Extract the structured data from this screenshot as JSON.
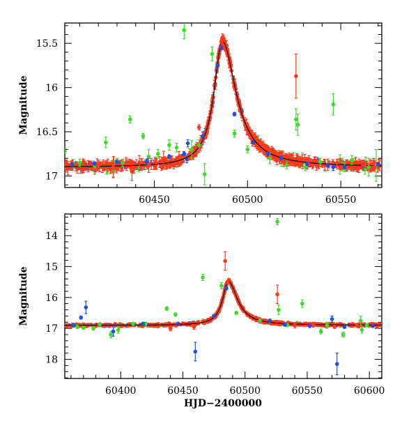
{
  "colors": {
    "blue": "#1f4fe0",
    "red": "#ff3a1c",
    "green": "#3cdc2a",
    "model": "#000000",
    "frame": "#000000"
  },
  "chart_data": [
    {
      "type": "scatter",
      "xlabel": "",
      "ylabel": "Magnitude",
      "xlim": [
        60402,
        60572
      ],
      "ylim": [
        15.27,
        17.13
      ],
      "y_inverted": true,
      "xticks": [
        60450,
        60500,
        60550
      ],
      "yticks": [
        15.5,
        16,
        16.5,
        17
      ],
      "ytick_labels": [
        "15.5",
        "16",
        "16.5",
        "17"
      ],
      "model_curve": true,
      "series": [
        {
          "color_key": "green",
          "points": [
            [
              60402,
              16.72,
              0.03
            ],
            [
              60410,
              16.85,
              0.04
            ],
            [
              60418,
              16.88,
              0.03
            ],
            [
              60424,
              16.62,
              0.06
            ],
            [
              60428,
              16.95,
              0.06
            ],
            [
              60433,
              16.85,
              0.04
            ],
            [
              60437,
              16.36,
              0.04
            ],
            [
              60444,
              16.55,
              0.03
            ],
            [
              60447,
              16.78,
              0.08
            ],
            [
              60452,
              16.75,
              0.05
            ],
            [
              60458,
              16.65,
              0.06
            ],
            [
              60462,
              16.68,
              0.05
            ],
            [
              60466,
              15.35,
              0.1
            ],
            [
              60470,
              16.7,
              0.1
            ],
            [
              60474,
              16.65,
              0.06
            ],
            [
              60477,
              16.98,
              0.12
            ],
            [
              60481,
              15.62,
              0.08
            ],
            [
              60493,
              16.52,
              0.04
            ],
            [
              60500,
              16.7,
              0.04
            ],
            [
              60512,
              16.8,
              0.06
            ],
            [
              60521,
              16.88,
              0.04
            ],
            [
              60526,
              16.36,
              0.12
            ],
            [
              60527,
              16.42,
              0.12
            ],
            [
              60531,
              16.9,
              0.04
            ],
            [
              60539,
              16.84,
              0.04
            ],
            [
              60546,
              16.19,
              0.12
            ],
            [
              60552,
              16.9,
              0.05
            ],
            [
              60556,
              16.82,
              0.05
            ],
            [
              60563,
              16.93,
              0.05
            ],
            [
              60565,
              16.9,
              0.1
            ],
            [
              60569,
              16.88,
              0.18
            ]
          ]
        },
        {
          "color_key": "blue",
          "points": [
            [
              60406,
              16.87,
              0.02
            ],
            [
              60418,
              16.86,
              0.02
            ],
            [
              60430,
              16.84,
              0.02
            ],
            [
              60446,
              16.84,
              0.03
            ],
            [
              60458,
              16.78,
              0.02
            ],
            [
              60466,
              16.75,
              0.02
            ],
            [
              60468,
              16.63,
              0.04
            ],
            [
              60476,
              16.55,
              0.05
            ],
            [
              60484,
              15.75,
              0.02
            ],
            [
              60486,
              15.55,
              0.02
            ],
            [
              60493,
              16.3,
              0.02
            ],
            [
              60503,
              16.62,
              0.02
            ],
            [
              60511,
              16.75,
              0.02
            ],
            [
              60518,
              16.8,
              0.02
            ],
            [
              60532,
              16.86,
              0.02
            ],
            [
              60543,
              16.88,
              0.02
            ],
            [
              60552,
              16.9,
              0.02
            ],
            [
              60562,
              16.89,
              0.02
            ],
            [
              60570,
              16.87,
              0.02
            ]
          ]
        },
        {
          "color_key": "red",
          "points": [
            [
              60420,
              16.88,
              0.06
            ],
            [
              60428,
              16.9,
              0.12
            ],
            [
              60438,
              16.95,
              0.1
            ],
            [
              60442,
              16.85,
              0.08
            ],
            [
              60447,
              16.88,
              0.08
            ],
            [
              60455,
              16.82,
              0.1
            ],
            [
              60474,
              16.45,
              0.03
            ],
            [
              60486,
              15.48,
              0.04
            ],
            [
              60526,
              15.87,
              0.25
            ],
            [
              60533,
              16.82,
              0.05
            ],
            [
              60548,
              16.85,
              0.04
            ],
            [
              60562,
              16.88,
              0.05
            ],
            [
              60568,
              16.9,
              0.05
            ]
          ]
        }
      ]
    },
    {
      "type": "scatter",
      "xlabel": "HJD−2400000",
      "ylabel": "Magnitude",
      "xlim": [
        60355,
        60610
      ],
      "ylim": [
        13.3,
        18.62
      ],
      "y_inverted": true,
      "xticks": [
        60400,
        60450,
        60500,
        60550,
        60600
      ],
      "yticks": [
        14,
        15,
        16,
        17,
        18
      ],
      "ytick_labels": [
        "14",
        "15",
        "16",
        "17",
        "18"
      ],
      "model_curve": true,
      "series": [
        {
          "color_key": "green",
          "points": [
            [
              60365,
              16.95,
              0.05
            ],
            [
              60370,
              16.98,
              0.05
            ],
            [
              60378,
              17.0,
              0.05
            ],
            [
              60383,
              16.88,
              0.05
            ],
            [
              60392,
              17.2,
              0.1
            ],
            [
              60398,
              17.05,
              0.1
            ],
            [
              60410,
              16.85,
              0.05
            ],
            [
              60420,
              16.85,
              0.05
            ],
            [
              60437,
              16.36,
              0.06
            ],
            [
              60444,
              16.55,
              0.05
            ],
            [
              60466,
              15.35,
              0.1
            ],
            [
              60481,
              15.62,
              0.1
            ],
            [
              60493,
              16.5,
              0.05
            ],
            [
              60512,
              16.75,
              0.05
            ],
            [
              60526,
              13.55,
              0.1
            ],
            [
              60527,
              16.4,
              0.15
            ],
            [
              60534,
              16.9,
              0.05
            ],
            [
              60546,
              16.2,
              0.12
            ],
            [
              60561,
              17.1,
              0.08
            ],
            [
              60566,
              16.9,
              0.1
            ],
            [
              60579,
              17.2,
              0.08
            ],
            [
              60593,
              16.75,
              0.15
            ],
            [
              60594,
              17.05,
              0.1
            ],
            [
              60598,
              16.9,
              0.05
            ]
          ]
        },
        {
          "color_key": "blue",
          "points": [
            [
              60362,
              16.9,
              0.05
            ],
            [
              60368,
              16.65,
              0.05
            ],
            [
              60372,
              16.32,
              0.2
            ],
            [
              60394,
              17.1,
              0.15
            ],
            [
              60418,
              16.85,
              0.05
            ],
            [
              60446,
              16.85,
              0.05
            ],
            [
              60460,
              17.75,
              0.3
            ],
            [
              60475,
              16.6,
              0.05
            ],
            [
              60485,
              15.7,
              0.05
            ],
            [
              60520,
              16.75,
              0.05
            ],
            [
              60532,
              16.88,
              0.05
            ],
            [
              60552,
              16.92,
              0.05
            ],
            [
              60570,
              16.7,
              0.1
            ],
            [
              60574,
              18.15,
              0.35
            ],
            [
              60580,
              16.95,
              0.05
            ],
            [
              60603,
              16.92,
              0.05
            ]
          ]
        },
        {
          "color_key": "red",
          "points": [
            [
              60440,
              17.0,
              0.08
            ],
            [
              60459,
              16.95,
              0.08
            ],
            [
              60484,
              14.82,
              0.3
            ],
            [
              60486,
              15.5,
              0.05
            ],
            [
              60526,
              15.9,
              0.3
            ],
            [
              60540,
              16.9,
              0.08
            ],
            [
              60555,
              16.88,
              0.08
            ],
            [
              60572,
              16.95,
              0.05
            ],
            [
              60590,
              16.9,
              0.05
            ]
          ]
        }
      ]
    }
  ]
}
